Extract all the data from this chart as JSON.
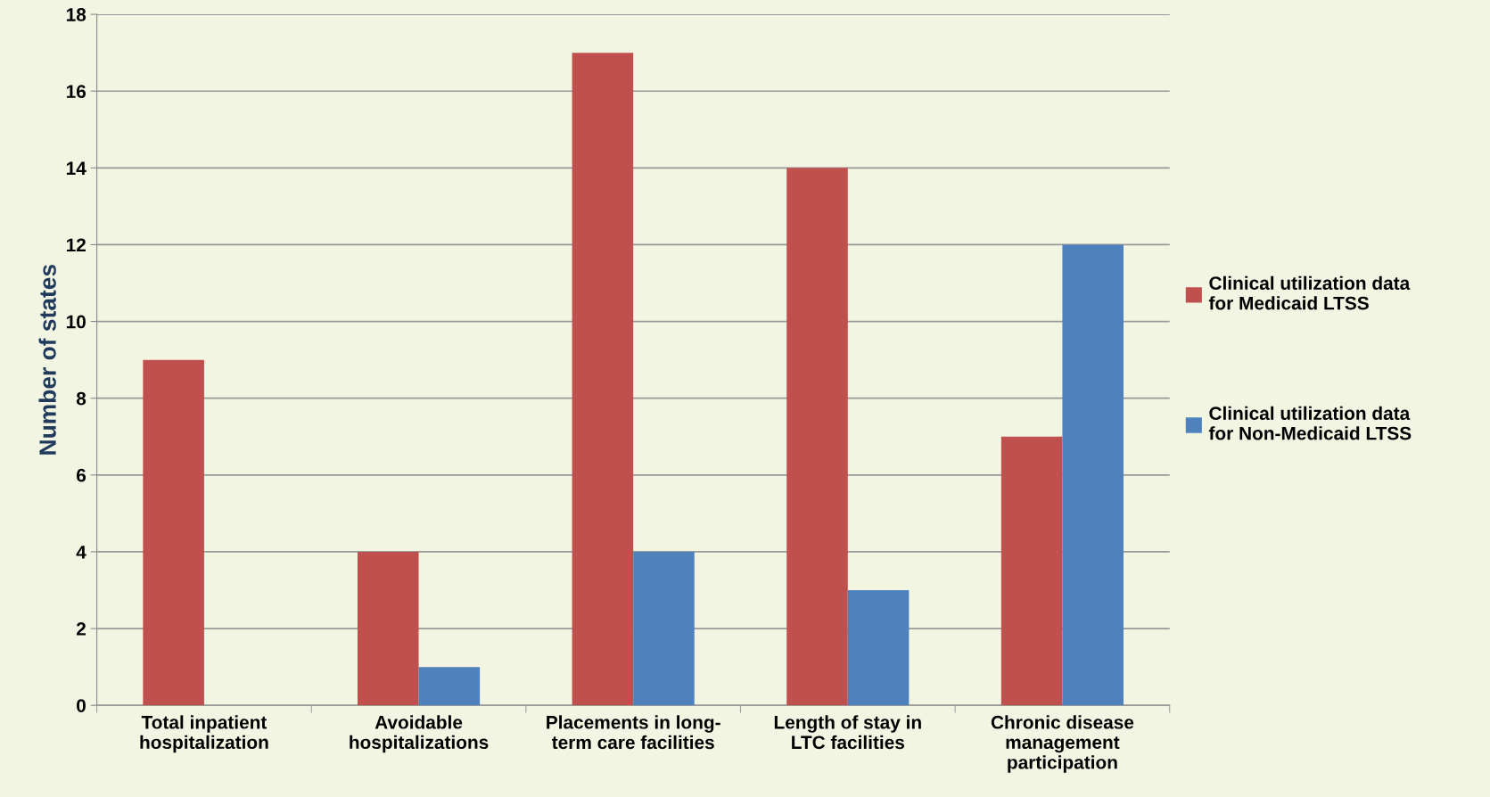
{
  "chart_data": {
    "type": "bar",
    "ylabel": "Number of states",
    "categories": [
      "Total inpatient\nhospitalization",
      "Avoidable\nhospitalizations",
      "Placements in long-\nterm care facilities",
      "Length of stay in\nLTC facilities",
      "Chronic disease\nmanagement\nparticipation"
    ],
    "series": [
      {
        "name": "Clinical utilization data\nfor Medicaid LTSS",
        "color": "#c0504d",
        "values": [
          9,
          4,
          17,
          14,
          7
        ]
      },
      {
        "name": "Clinical utilization data\nfor Non-Medicaid LTSS",
        "color": "#4f81bd",
        "values": [
          0,
          1,
          4,
          3,
          12
        ]
      }
    ],
    "ylim": [
      0,
      18
    ],
    "yticks": [
      0,
      2,
      4,
      6,
      8,
      10,
      12,
      14,
      16,
      18
    ],
    "grid": "y",
    "legend": "right"
  }
}
